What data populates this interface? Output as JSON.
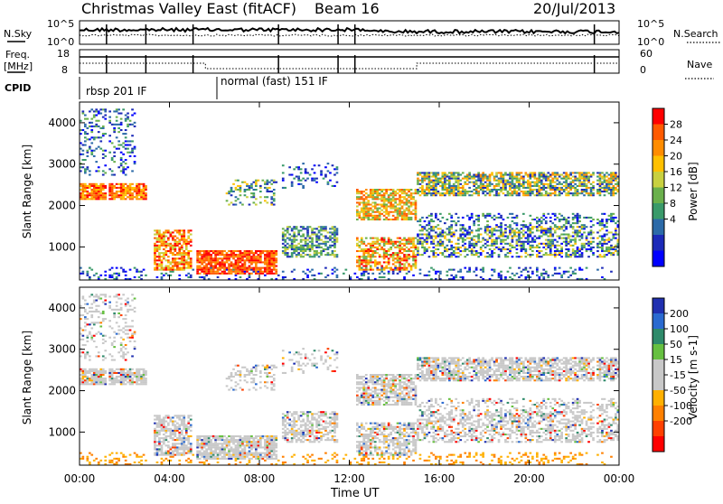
{
  "header": {
    "title": "Christmas Valley East (fitACF)",
    "beam": "Beam 16",
    "date": "20/Jul/2013"
  },
  "noise_panel": {
    "left_label": "N.Sky",
    "right_label": "N.Search",
    "left_ticks": [
      "10^5",
      "10^0"
    ],
    "right_ticks": [
      "10^5",
      "10^0"
    ]
  },
  "freq_panel": {
    "left_label_1": "Freq.",
    "left_label_2": "[MHz]",
    "right_label": "Nave",
    "left_ticks": [
      "18",
      "8"
    ],
    "right_ticks": [
      "60",
      "0"
    ]
  },
  "cpid_panel": {
    "label": "CPID",
    "mode_1": "rbsp 201 IF",
    "mode_2": "normal (fast) 151 IF"
  },
  "chart_data": [
    {
      "type": "heatmap",
      "name": "power",
      "ylabel": "Slant Range [km]",
      "ylim": [
        200,
        4500
      ],
      "yticks": [
        "1000",
        "2000",
        "3000",
        "4000"
      ],
      "xlim_hours": [
        0,
        24
      ],
      "colorbar": {
        "label": "Power [dB]",
        "ticks": [
          "28",
          "24",
          "20",
          "16",
          "12",
          "8",
          "4"
        ],
        "colors": [
          "#ff0000",
          "#ff5a00",
          "#ff8c00",
          "#ffc000",
          "#c8d040",
          "#6ab04c",
          "#3a9a6a",
          "#2c6aa8",
          "#1c2ab8",
          "#0000ff"
        ]
      }
    },
    {
      "type": "heatmap",
      "name": "velocity",
      "ylabel": "Slant Range [km]",
      "ylim": [
        200,
        4500
      ],
      "yticks": [
        "1000",
        "2000",
        "3000",
        "4000"
      ],
      "xlim_hours": [
        0,
        24
      ],
      "colorbar": {
        "label": "Velocity [m s-1]",
        "ticks": [
          "200",
          "100",
          "50",
          "15",
          "-15",
          "-50",
          "-100",
          "-200"
        ],
        "colors": [
          "#2030b0",
          "#2a6ad0",
          "#2e8a6a",
          "#66c040",
          "#c8c8c8",
          "#c8c8c8",
          "#ffb000",
          "#ff8000",
          "#ff4000",
          "#ff0000"
        ]
      }
    }
  ],
  "xaxis": {
    "label": "Time UT",
    "ticks": [
      "00:00",
      "04:00",
      "08:00",
      "12:00",
      "16:00",
      "20:00",
      "00:00"
    ]
  }
}
